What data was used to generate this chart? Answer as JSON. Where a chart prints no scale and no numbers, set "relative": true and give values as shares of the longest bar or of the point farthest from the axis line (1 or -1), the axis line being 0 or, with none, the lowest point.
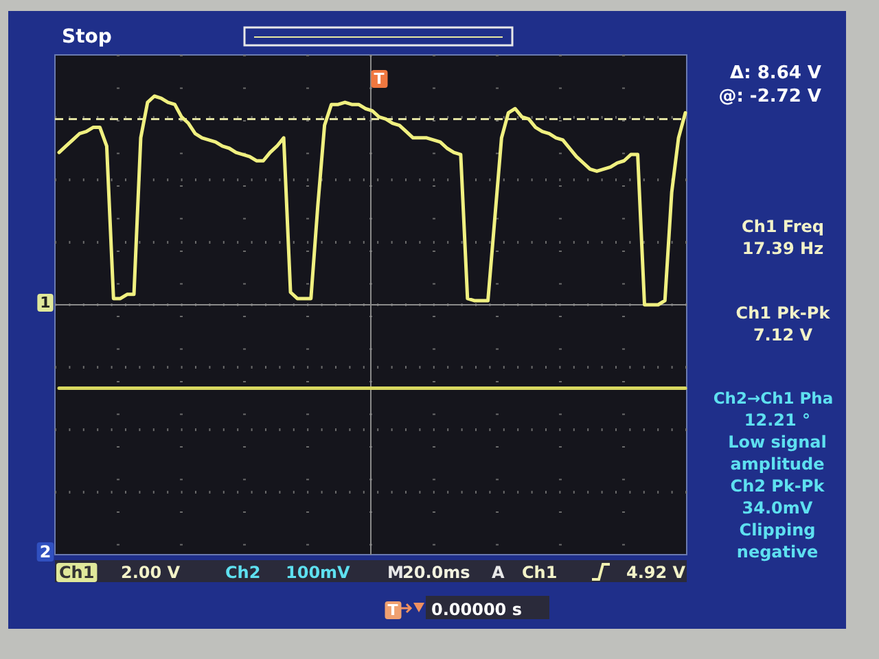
{
  "chart_data": {
    "type": "line",
    "relative": true,
    "grid": true,
    "categories": [
      null,
      null,
      null,
      null,
      null,
      null,
      null,
      null,
      null,
      null,
      null,
      null,
      null,
      null,
      null,
      null,
      null,
      null,
      null,
      null,
      null,
      null,
      null,
      null,
      null,
      null,
      null,
      null,
      null,
      null,
      null,
      null,
      null,
      null,
      null,
      null,
      null,
      null,
      null,
      null,
      null,
      null,
      null,
      null,
      null,
      null,
      null,
      null,
      null,
      null,
      null,
      null,
      null,
      null,
      null,
      null,
      null,
      null,
      null,
      null,
      null,
      null,
      null,
      null,
      null,
      null,
      null,
      null,
      null,
      null,
      null,
      null,
      null,
      null,
      null,
      null,
      null,
      null,
      null,
      null,
      null,
      null,
      null,
      null,
      null,
      null,
      null,
      null,
      null,
      null,
      null,
      null,
      null
    ],
    "series": [
      {
        "color": "#f0f080",
        "values": [
          0.73,
          0.76,
          0.79,
          0.82,
          0.83,
          0.85,
          0.85,
          0.76,
          0.03,
          0.03,
          0.05,
          0.05,
          0.8,
          0.97,
          1.0,
          0.99,
          0.97,
          0.96,
          0.9,
          0.87,
          0.82,
          0.8,
          0.79,
          0.78,
          0.76,
          0.75,
          0.73,
          0.72,
          0.71,
          0.69,
          0.69,
          0.73,
          0.76,
          0.8,
          0.06,
          0.03,
          0.03,
          0.03,
          0.47,
          0.86,
          0.96,
          0.96,
          0.97,
          0.96,
          0.96,
          0.94,
          0.93,
          0.9,
          0.89,
          0.87,
          0.86,
          0.83,
          0.8,
          0.8,
          0.8,
          0.79,
          0.78,
          0.75,
          0.73,
          0.72,
          0.03,
          0.02,
          0.02,
          0.02,
          0.41,
          0.8,
          0.92,
          0.94,
          0.9,
          0.89,
          0.85,
          0.83,
          0.82,
          0.8,
          0.79,
          0.75,
          0.71,
          0.68,
          0.65,
          0.64,
          0.65,
          0.66,
          0.68,
          0.69,
          0.72,
          0.72,
          0.0,
          0.0,
          0.0,
          0.02,
          0.54,
          0.8,
          0.92
        ]
      },
      {
        "color": "#d8d860",
        "values": [
          -0.4,
          -0.4,
          -0.4,
          -0.4,
          -0.4,
          -0.4,
          -0.4,
          -0.4,
          -0.4,
          -0.4,
          -0.4,
          -0.4,
          -0.4,
          -0.4,
          -0.4,
          -0.4,
          -0.4,
          -0.4,
          -0.4,
          -0.4,
          -0.4,
          -0.4,
          -0.4,
          -0.4,
          -0.4,
          -0.4,
          -0.4,
          -0.4,
          -0.4,
          -0.4,
          -0.4,
          -0.4,
          -0.4,
          -0.4,
          -0.4,
          -0.4,
          -0.4,
          -0.4,
          -0.4,
          -0.4,
          -0.4,
          -0.4,
          -0.4,
          -0.4,
          -0.4,
          -0.4,
          -0.4,
          -0.4,
          -0.4,
          -0.4,
          -0.4,
          -0.4,
          -0.4,
          -0.4,
          -0.4,
          -0.4,
          -0.4,
          -0.4,
          -0.4,
          -0.4,
          -0.4,
          -0.4,
          -0.4,
          -0.4,
          -0.4,
          -0.4,
          -0.4,
          -0.4,
          -0.4,
          -0.4,
          -0.4,
          -0.4,
          -0.4,
          -0.4,
          -0.4,
          -0.4,
          -0.4,
          -0.4,
          -0.4,
          -0.4,
          -0.4,
          -0.4,
          -0.4,
          -0.4,
          -0.4,
          -0.4,
          -0.4,
          -0.4,
          -0.4,
          -0.4,
          -0.4,
          -0.4,
          -0.4
        ]
      }
    ],
    "ref_lines": [
      {
        "axis": "y",
        "value": 0.89,
        "color": "#e0e0a0",
        "line_style": "dashed"
      }
    ],
    "annotations": [
      "Stop",
      "Δ: 8.64 V",
      "@: -2.72 V",
      "Ch1 Freq",
      "17.39 Hz",
      "Ch1 Pk-Pk",
      "7.12 V",
      "Ch2→Ch1 Pha",
      "12.21 °",
      "Low signal",
      "amplitude",
      "Ch2 Pk-Pk",
      "34.0mV",
      "Clipping",
      "negative",
      "Ch1",
      "2.00 V",
      "Ch2",
      "100mV",
      "M",
      "20.0ms",
      "A",
      "Ch1",
      "4.92 V",
      "T",
      "T",
      "0.00000 s",
      "1",
      "2"
    ]
  }
}
